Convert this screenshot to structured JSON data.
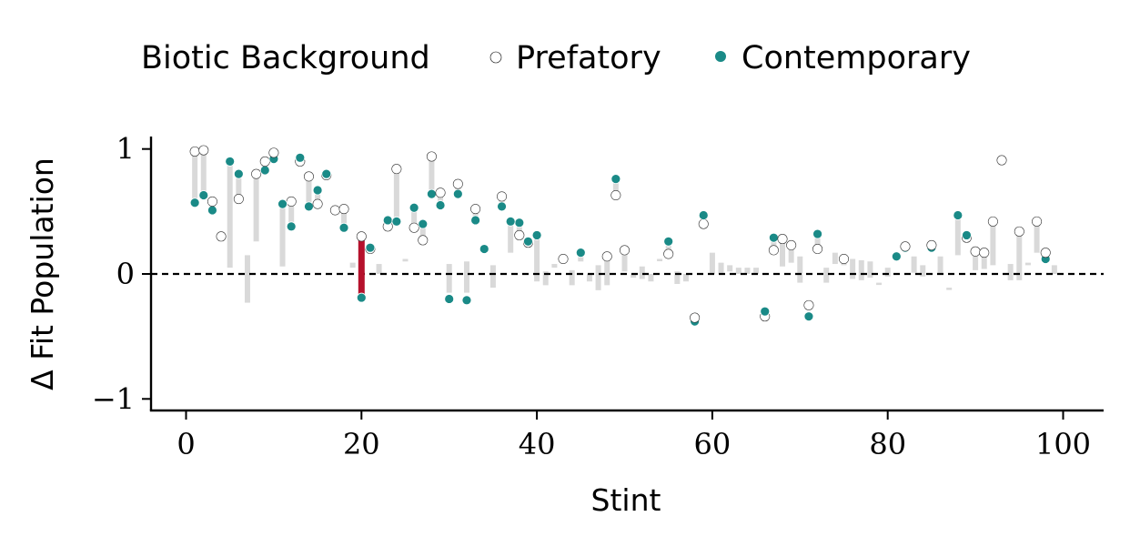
{
  "chart_data": {
    "type": "scatter",
    "legend": {
      "title": "Biotic Background",
      "entries": [
        {
          "label": "Prefatory",
          "style": "white-dot-outlined"
        },
        {
          "label": "Contemporary",
          "style": "teal-dot"
        }
      ],
      "placement": "top"
    },
    "xlabel": "Stint",
    "ylabel": "Δ Fit Population",
    "xlim": [
      -4,
      105
    ],
    "ylim": [
      -1.1,
      1.1
    ],
    "xticks": [
      0,
      20,
      40,
      60,
      80,
      100
    ],
    "xtick_labels": [
      "0",
      "20",
      "40",
      "60",
      "80",
      "100"
    ],
    "yticks": [
      -1,
      0,
      1
    ],
    "ytick_labels": [
      "−1",
      "0",
      "1"
    ],
    "reference_line": {
      "y": 0,
      "style": "dashed"
    },
    "highlight_stint": 20,
    "colors": {
      "contemporary": "#1a8a87",
      "highlight": "#b5112c",
      "bar": "#d9d9d9",
      "axis": "#000000"
    },
    "paired_points": [
      {
        "stint": 1,
        "prefatory": 0.98,
        "contemporary": 0.57
      },
      {
        "stint": 2,
        "prefatory": 0.99,
        "contemporary": 0.63
      },
      {
        "stint": 3,
        "prefatory": 0.58,
        "contemporary": 0.51
      },
      {
        "stint": 4,
        "prefatory": 0.3,
        "contemporary": 0.3
      },
      {
        "stint": 6,
        "prefatory": 0.6,
        "contemporary": 0.8
      },
      {
        "stint": 8,
        "prefatory": 0.8,
        "contemporary": 0.8
      },
      {
        "stint": 9,
        "prefatory": 0.9,
        "contemporary": 0.83
      },
      {
        "stint": 10,
        "prefatory": 0.97,
        "contemporary": 0.92
      },
      {
        "stint": 12,
        "prefatory": 0.58,
        "contemporary": 0.38
      },
      {
        "stint": 13,
        "prefatory": 0.9,
        "contemporary": 0.93
      },
      {
        "stint": 14,
        "prefatory": 0.78,
        "contemporary": 0.54
      },
      {
        "stint": 15,
        "prefatory": 0.56,
        "contemporary": 0.67
      },
      {
        "stint": 16,
        "prefatory": 0.79,
        "contemporary": 0.8
      },
      {
        "stint": 17,
        "prefatory": 0.51,
        "contemporary": 0.51
      },
      {
        "stint": 18,
        "prefatory": 0.52,
        "contemporary": 0.37
      },
      {
        "stint": 20,
        "prefatory": 0.3,
        "contemporary": -0.19
      },
      {
        "stint": 21,
        "prefatory": 0.2,
        "contemporary": 0.21
      },
      {
        "stint": 23,
        "prefatory": 0.38,
        "contemporary": 0.43
      },
      {
        "stint": 24,
        "prefatory": 0.84,
        "contemporary": 0.42
      },
      {
        "stint": 26,
        "prefatory": 0.37,
        "contemporary": 0.53
      },
      {
        "stint": 27,
        "prefatory": 0.27,
        "contemporary": 0.4
      },
      {
        "stint": 28,
        "prefatory": 0.94,
        "contemporary": 0.64
      },
      {
        "stint": 29,
        "prefatory": 0.65,
        "contemporary": 0.55
      },
      {
        "stint": 31,
        "prefatory": 0.72,
        "contemporary": 0.64
      },
      {
        "stint": 33,
        "prefatory": 0.52,
        "contemporary": 0.43
      },
      {
        "stint": 36,
        "prefatory": 0.62,
        "contemporary": 0.54
      },
      {
        "stint": 38,
        "prefatory": 0.31,
        "contemporary": 0.41
      },
      {
        "stint": 39,
        "prefatory": 0.25,
        "contemporary": 0.26
      },
      {
        "stint": 49,
        "prefatory": 0.63,
        "contemporary": 0.76
      },
      {
        "stint": 55,
        "prefatory": 0.16,
        "contemporary": 0.26
      },
      {
        "stint": 58,
        "prefatory": -0.35,
        "contemporary": -0.38
      },
      {
        "stint": 59,
        "prefatory": 0.4,
        "contemporary": 0.47
      },
      {
        "stint": 66,
        "prefatory": -0.34,
        "contemporary": -0.3
      },
      {
        "stint": 67,
        "prefatory": 0.19,
        "contemporary": 0.29
      },
      {
        "stint": 71,
        "prefatory": -0.25,
        "contemporary": -0.34
      },
      {
        "stint": 72,
        "prefatory": 0.2,
        "contemporary": 0.32
      },
      {
        "stint": 82,
        "prefatory": 0.22,
        "contemporary": 0.21
      },
      {
        "stint": 85,
        "prefatory": 0.23,
        "contemporary": 0.21
      },
      {
        "stint": 89,
        "prefatory": 0.29,
        "contemporary": 0.31
      },
      {
        "stint": 93,
        "prefatory": 0.91,
        "contemporary": 0.91
      },
      {
        "stint": 98,
        "prefatory": 0.17,
        "contemporary": 0.12
      }
    ],
    "prefatory_only": [
      {
        "stint": 43,
        "y": 0.12
      },
      {
        "stint": 48,
        "y": 0.14
      },
      {
        "stint": 50,
        "y": 0.19
      },
      {
        "stint": 68,
        "y": 0.28
      },
      {
        "stint": 69,
        "y": 0.23
      },
      {
        "stint": 75,
        "y": 0.12
      },
      {
        "stint": 90,
        "y": 0.18
      },
      {
        "stint": 91,
        "y": 0.17
      },
      {
        "stint": 92,
        "y": 0.42
      },
      {
        "stint": 95,
        "y": 0.34
      },
      {
        "stint": 97,
        "y": 0.42
      }
    ],
    "contemporary_only": [
      {
        "stint": 5,
        "y": 0.9
      },
      {
        "stint": 11,
        "y": 0.56
      },
      {
        "stint": 30,
        "y": -0.2
      },
      {
        "stint": 32,
        "y": -0.21
      },
      {
        "stint": 34,
        "y": 0.2
      },
      {
        "stint": 37,
        "y": 0.42
      },
      {
        "stint": 40,
        "y": 0.31
      },
      {
        "stint": 45,
        "y": 0.17
      },
      {
        "stint": 81,
        "y": 0.14
      },
      {
        "stint": 88,
        "y": 0.47
      }
    ],
    "difference_bars": [
      {
        "stint": 1,
        "from": 0.57,
        "to": 0.98
      },
      {
        "stint": 2,
        "from": 0.63,
        "to": 0.99
      },
      {
        "stint": 3,
        "from": 0.51,
        "to": 0.58
      },
      {
        "stint": 5,
        "from": 0.05,
        "to": 0.9
      },
      {
        "stint": 6,
        "from": 0.6,
        "to": 0.8
      },
      {
        "stint": 7,
        "from": -0.23,
        "to": 0.15
      },
      {
        "stint": 8,
        "from": 0.26,
        "to": 0.8
      },
      {
        "stint": 9,
        "from": 0.83,
        "to": 0.9
      },
      {
        "stint": 10,
        "from": 0.92,
        "to": 0.97
      },
      {
        "stint": 11,
        "from": 0.06,
        "to": 0.56
      },
      {
        "stint": 12,
        "from": 0.38,
        "to": 0.58
      },
      {
        "stint": 14,
        "from": 0.54,
        "to": 0.78
      },
      {
        "stint": 15,
        "from": 0.56,
        "to": 0.67
      },
      {
        "stint": 18,
        "from": 0.37,
        "to": 0.52
      },
      {
        "stint": 19,
        "from": 0.05,
        "to": 0.09
      },
      {
        "stint": 22,
        "from": 0.0,
        "to": 0.08
      },
      {
        "stint": 23,
        "from": 0.38,
        "to": 0.43
      },
      {
        "stint": 24,
        "from": 0.42,
        "to": 0.84
      },
      {
        "stint": 25,
        "from": 0.1,
        "to": 0.12
      },
      {
        "stint": 26,
        "from": 0.37,
        "to": 0.53
      },
      {
        "stint": 27,
        "from": 0.27,
        "to": 0.4
      },
      {
        "stint": 28,
        "from": 0.64,
        "to": 0.94
      },
      {
        "stint": 29,
        "from": 0.55,
        "to": 0.65
      },
      {
        "stint": 30,
        "from": -0.15,
        "to": 0.08
      },
      {
        "stint": 31,
        "from": 0.64,
        "to": 0.72
      },
      {
        "stint": 32,
        "from": -0.15,
        "to": 0.1
      },
      {
        "stint": 33,
        "from": 0.43,
        "to": 0.52
      },
      {
        "stint": 35,
        "from": -0.11,
        "to": 0.07
      },
      {
        "stint": 36,
        "from": 0.54,
        "to": 0.62
      },
      {
        "stint": 37,
        "from": 0.17,
        "to": 0.42
      },
      {
        "stint": 38,
        "from": 0.31,
        "to": 0.41
      },
      {
        "stint": 40,
        "from": -0.06,
        "to": 0.31
      },
      {
        "stint": 41,
        "from": -0.09,
        "to": 0.02
      },
      {
        "stint": 42,
        "from": 0.05,
        "to": 0.08
      },
      {
        "stint": 44,
        "from": -0.09,
        "to": 0.03
      },
      {
        "stint": 45,
        "from": 0.1,
        "to": 0.17
      },
      {
        "stint": 46,
        "from": -0.06,
        "to": 0.0
      },
      {
        "stint": 47,
        "from": -0.13,
        "to": 0.07
      },
      {
        "stint": 48,
        "from": -0.09,
        "to": 0.14
      },
      {
        "stint": 49,
        "from": 0.63,
        "to": 0.76
      },
      {
        "stint": 50,
        "from": 0.02,
        "to": 0.19
      },
      {
        "stint": 51,
        "from": -0.03,
        "to": 0.0
      },
      {
        "stint": 52,
        "from": -0.04,
        "to": 0.06
      },
      {
        "stint": 53,
        "from": -0.06,
        "to": 0.0
      },
      {
        "stint": 54,
        "from": 0.11,
        "to": 0.12
      },
      {
        "stint": 55,
        "from": 0.16,
        "to": 0.26
      },
      {
        "stint": 56,
        "from": -0.08,
        "to": 0.02
      },
      {
        "stint": 57,
        "from": -0.06,
        "to": 0.0
      },
      {
        "stint": 60,
        "from": 0.0,
        "to": 0.17
      },
      {
        "stint": 61,
        "from": 0.0,
        "to": 0.09
      },
      {
        "stint": 62,
        "from": 0.02,
        "to": 0.07
      },
      {
        "stint": 63,
        "from": 0.0,
        "to": 0.05
      },
      {
        "stint": 64,
        "from": 0.0,
        "to": 0.05
      },
      {
        "stint": 65,
        "from": 0.0,
        "to": 0.05
      },
      {
        "stint": 67,
        "from": 0.19,
        "to": 0.29
      },
      {
        "stint": 68,
        "from": 0.06,
        "to": 0.28
      },
      {
        "stint": 69,
        "from": 0.09,
        "to": 0.23
      },
      {
        "stint": 70,
        "from": -0.07,
        "to": 0.14
      },
      {
        "stint": 72,
        "from": 0.2,
        "to": 0.32
      },
      {
        "stint": 73,
        "from": -0.07,
        "to": 0.05
      },
      {
        "stint": 74,
        "from": 0.08,
        "to": 0.17
      },
      {
        "stint": 75,
        "from": 0.07,
        "to": 0.12
      },
      {
        "stint": 76,
        "from": -0.04,
        "to": 0.12
      },
      {
        "stint": 77,
        "from": -0.05,
        "to": 0.11
      },
      {
        "stint": 78,
        "from": -0.03,
        "to": 0.1
      },
      {
        "stint": 79,
        "from": -0.08,
        "to": -0.07
      },
      {
        "stint": 80,
        "from": -0.02,
        "to": 0.05
      },
      {
        "stint": 83,
        "from": 0.01,
        "to": 0.14
      },
      {
        "stint": 84,
        "from": -0.02,
        "to": 0.07
      },
      {
        "stint": 86,
        "from": 0.0,
        "to": 0.14
      },
      {
        "stint": 87,
        "from": -0.12,
        "to": -0.11
      },
      {
        "stint": 88,
        "from": 0.15,
        "to": 0.47
      },
      {
        "stint": 90,
        "from": 0.03,
        "to": 0.18
      },
      {
        "stint": 91,
        "from": 0.04,
        "to": 0.17
      },
      {
        "stint": 92,
        "from": 0.07,
        "to": 0.42
      },
      {
        "stint": 94,
        "from": -0.05,
        "to": 0.08
      },
      {
        "stint": 95,
        "from": -0.05,
        "to": 0.34
      },
      {
        "stint": 96,
        "from": 0.07,
        "to": 0.09
      },
      {
        "stint": 97,
        "from": 0.17,
        "to": 0.42
      },
      {
        "stint": 99,
        "from": 0.0,
        "to": 0.07
      }
    ],
    "highlight_bar": {
      "stint": 20,
      "from": -0.19,
      "to": 0.3
    }
  }
}
